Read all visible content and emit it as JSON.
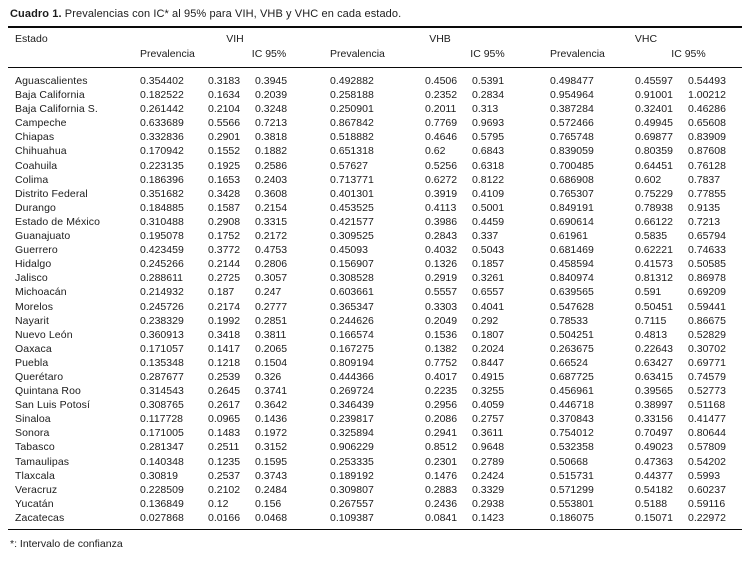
{
  "title": {
    "label": "Cuadro 1.",
    "text": " Prevalencias con IC* al 95% para VIH, VHB y VHC en cada estado."
  },
  "footnote": "*: Intervalo de confianza",
  "colors": {
    "text": "#1c1c1c",
    "background": "#ffffff",
    "rule": "#0a0a0a"
  },
  "table": {
    "estado_header": "Estado",
    "groups": {
      "vih": "VIH",
      "vhb": "VHB",
      "vhc": "VHC"
    },
    "subheaders": {
      "prevalencia": "Prevalencia",
      "ic": "IC 95%"
    },
    "rows": [
      {
        "estado": "Aguascalientes",
        "vih": [
          "0.354402",
          "0.3183",
          "0.3945"
        ],
        "vhb": [
          "0.492882",
          "0.4506",
          "0.5391"
        ],
        "vhc": [
          "0.498477",
          "0.45597",
          "0.54493"
        ]
      },
      {
        "estado": "Baja California",
        "vih": [
          "0.182522",
          "0.1634",
          "0.2039"
        ],
        "vhb": [
          "0.258188",
          "0.2352",
          "0.2834"
        ],
        "vhc": [
          "0.954964",
          "0.91001",
          "1.00212"
        ]
      },
      {
        "estado": "Baja California S.",
        "vih": [
          "0.261442",
          "0.2104",
          "0.3248"
        ],
        "vhb": [
          "0.250901",
          "0.2011",
          "0.313"
        ],
        "vhc": [
          "0.387284",
          "0.32401",
          "0.46286"
        ]
      },
      {
        "estado": "Campeche",
        "vih": [
          "0.633689",
          "0.5566",
          "0.7213"
        ],
        "vhb": [
          "0.867842",
          "0.7769",
          "0.9693"
        ],
        "vhc": [
          "0.572466",
          "0.49945",
          "0.65608"
        ]
      },
      {
        "estado": "Chiapas",
        "vih": [
          "0.332836",
          "0.2901",
          "0.3818"
        ],
        "vhb": [
          "0.518882",
          "0.4646",
          "0.5795"
        ],
        "vhc": [
          "0.765748",
          "0.69877",
          "0.83909"
        ]
      },
      {
        "estado": "Chihuahua",
        "vih": [
          "0.170942",
          "0.1552",
          "0.1882"
        ],
        "vhb": [
          "0.651318",
          "0.62",
          "0.6843"
        ],
        "vhc": [
          "0.839059",
          "0.80359",
          "0.87608"
        ]
      },
      {
        "estado": "Coahuila",
        "vih": [
          "0.223135",
          "0.1925",
          "0.2586"
        ],
        "vhb": [
          "0.57627",
          "0.5256",
          "0.6318"
        ],
        "vhc": [
          "0.700485",
          "0.64451",
          "0.76128"
        ]
      },
      {
        "estado": "Colima",
        "vih": [
          "0.186396",
          "0.1653",
          "0.2403"
        ],
        "vhb": [
          "0.713771",
          "0.6272",
          "0.8122"
        ],
        "vhc": [
          "0.686908",
          "0.602",
          "0.7837"
        ]
      },
      {
        "estado": "Distrito Federal",
        "vih": [
          "0.351682",
          "0.3428",
          "0.3608"
        ],
        "vhb": [
          "0.401301",
          "0.3919",
          "0.4109"
        ],
        "vhc": [
          "0.765307",
          "0.75229",
          "0.77855"
        ]
      },
      {
        "estado": "Durango",
        "vih": [
          "0.184885",
          "0.1587",
          "0.2154"
        ],
        "vhb": [
          "0.453525",
          "0.4113",
          "0.5001"
        ],
        "vhc": [
          "0.849191",
          "0.78938",
          "0.9135"
        ]
      },
      {
        "estado": "Estado de México",
        "vih": [
          "0.310488",
          "0.2908",
          "0.3315"
        ],
        "vhb": [
          "0.421577",
          "0.3986",
          "0.4459"
        ],
        "vhc": [
          "0.690614",
          "0.66122",
          "0.7213"
        ]
      },
      {
        "estado": "Guanajuato",
        "vih": [
          "0.195078",
          "0.1752",
          "0.2172"
        ],
        "vhb": [
          "0.309525",
          "0.2843",
          "0.337"
        ],
        "vhc": [
          "0.61961",
          "0.5835",
          "0.65794"
        ]
      },
      {
        "estado": "Guerrero",
        "vih": [
          "0.423459",
          "0.3772",
          "0.4753"
        ],
        "vhb": [
          "0.45093",
          "0.4032",
          "0.5043"
        ],
        "vhc": [
          "0.681469",
          "0.62221",
          "0.74633"
        ]
      },
      {
        "estado": "Hidalgo",
        "vih": [
          "0.245266",
          "0.2144",
          "0.2806"
        ],
        "vhb": [
          "0.156907",
          "0.1326",
          "0.1857"
        ],
        "vhc": [
          "0.458594",
          "0.41573",
          "0.50585"
        ]
      },
      {
        "estado": "Jalisco",
        "vih": [
          "0.288611",
          "0.2725",
          "0.3057"
        ],
        "vhb": [
          "0.308528",
          "0.2919",
          "0.3261"
        ],
        "vhc": [
          "0.840974",
          "0.81312",
          "0.86978"
        ]
      },
      {
        "estado": "Michoacán",
        "vih": [
          "0.214932",
          "0.187",
          "0.247"
        ],
        "vhb": [
          "0.603661",
          "0.5557",
          "0.6557"
        ],
        "vhc": [
          "0.639565",
          "0.591",
          "0.69209"
        ]
      },
      {
        "estado": "Morelos",
        "vih": [
          "0.245726",
          "0.2174",
          "0.2777"
        ],
        "vhb": [
          "0.365347",
          "0.3303",
          "0.4041"
        ],
        "vhc": [
          "0.547628",
          "0.50451",
          "0.59441"
        ]
      },
      {
        "estado": "Nayarit",
        "vih": [
          "0.238329",
          "0.1992",
          "0.2851"
        ],
        "vhb": [
          "0.244626",
          "0.2049",
          "0.292"
        ],
        "vhc": [
          "0.78533",
          "0.7115",
          "0.86675"
        ]
      },
      {
        "estado": "Nuevo León",
        "vih": [
          "0.360913",
          "0.3418",
          "0.3811"
        ],
        "vhb": [
          "0.166574",
          "0.1536",
          "0.1807"
        ],
        "vhc": [
          "0.504251",
          "0.4813",
          "0.52829"
        ]
      },
      {
        "estado": "Oaxaca",
        "vih": [
          "0.171057",
          "0.1417",
          "0.2065"
        ],
        "vhb": [
          "0.167275",
          "0.1382",
          "0.2024"
        ],
        "vhc": [
          "0.263675",
          "0.22643",
          "0.30702"
        ]
      },
      {
        "estado": "Puebla",
        "vih": [
          "0.135348",
          "0.1218",
          "0.1504"
        ],
        "vhb": [
          "0.809194",
          "0.7752",
          "0.8447"
        ],
        "vhc": [
          "0.66524",
          "0.63427",
          "0.69771"
        ]
      },
      {
        "estado": "Querétaro",
        "vih": [
          "0.287677",
          "0.2539",
          "0.326"
        ],
        "vhb": [
          "0.444366",
          "0.4017",
          "0.4915"
        ],
        "vhc": [
          "0.687725",
          "0.63415",
          "0.74579"
        ]
      },
      {
        "estado": "Quintana Roo",
        "vih": [
          "0.314543",
          "0.2645",
          "0.3741"
        ],
        "vhb": [
          "0.269724",
          "0.2235",
          "0.3255"
        ],
        "vhc": [
          "0.456961",
          "0.39565",
          "0.52773"
        ]
      },
      {
        "estado": "San Luis Potosí",
        "vih": [
          "0.308765",
          "0.2617",
          "0.3642"
        ],
        "vhb": [
          "0.346439",
          "0.2956",
          "0.4059"
        ],
        "vhc": [
          "0.446718",
          "0.38997",
          "0.51168"
        ]
      },
      {
        "estado": "Sinaloa",
        "vih": [
          "0.117728",
          "0.0965",
          "0.1436"
        ],
        "vhb": [
          "0.239817",
          "0.2086",
          "0.2757"
        ],
        "vhc": [
          "0.370843",
          "0.33156",
          "0.41477"
        ]
      },
      {
        "estado": "Sonora",
        "vih": [
          "0.171005",
          "0.1483",
          "0.1972"
        ],
        "vhb": [
          "0.325894",
          "0.2941",
          "0.3611"
        ],
        "vhc": [
          "0.754012",
          "0.70497",
          "0.80644"
        ]
      },
      {
        "estado": "Tabasco",
        "vih": [
          "0.281347",
          "0.2511",
          "0.3152"
        ],
        "vhb": [
          "0.906229",
          "0.8512",
          "0.9648"
        ],
        "vhc": [
          "0.532358",
          "0.49023",
          "0.57809"
        ]
      },
      {
        "estado": "Tamaulipas",
        "vih": [
          "0.140348",
          "0.1235",
          "0.1595"
        ],
        "vhb": [
          "0.253335",
          "0.2301",
          "0.2789"
        ],
        "vhc": [
          "0.50668",
          "0.47363",
          "0.54202"
        ]
      },
      {
        "estado": "Tlaxcala",
        "vih": [
          "0.30819",
          "0.2537",
          "0.3743"
        ],
        "vhb": [
          "0.189192",
          "0.1476",
          "0.2424"
        ],
        "vhc": [
          "0.515731",
          "0.44377",
          "0.5993"
        ]
      },
      {
        "estado": "Veracruz",
        "vih": [
          "0.228509",
          "0.2102",
          "0.2484"
        ],
        "vhb": [
          "0.309807",
          "0.2883",
          "0.3329"
        ],
        "vhc": [
          "0.571299",
          "0.54182",
          "0.60237"
        ]
      },
      {
        "estado": "Yucatán",
        "vih": [
          "0.136849",
          "0.12",
          "0.156"
        ],
        "vhb": [
          "0.267557",
          "0.2436",
          "0.2938"
        ],
        "vhc": [
          "0.553801",
          "0.5188",
          "0.59116"
        ]
      },
      {
        "estado": "Zacatecas",
        "vih": [
          "0.027868",
          "0.0166",
          "0.0468"
        ],
        "vhb": [
          "0.109387",
          "0.0841",
          "0.1423"
        ],
        "vhc": [
          "0.186075",
          "0.15071",
          "0.22972"
        ]
      }
    ]
  }
}
